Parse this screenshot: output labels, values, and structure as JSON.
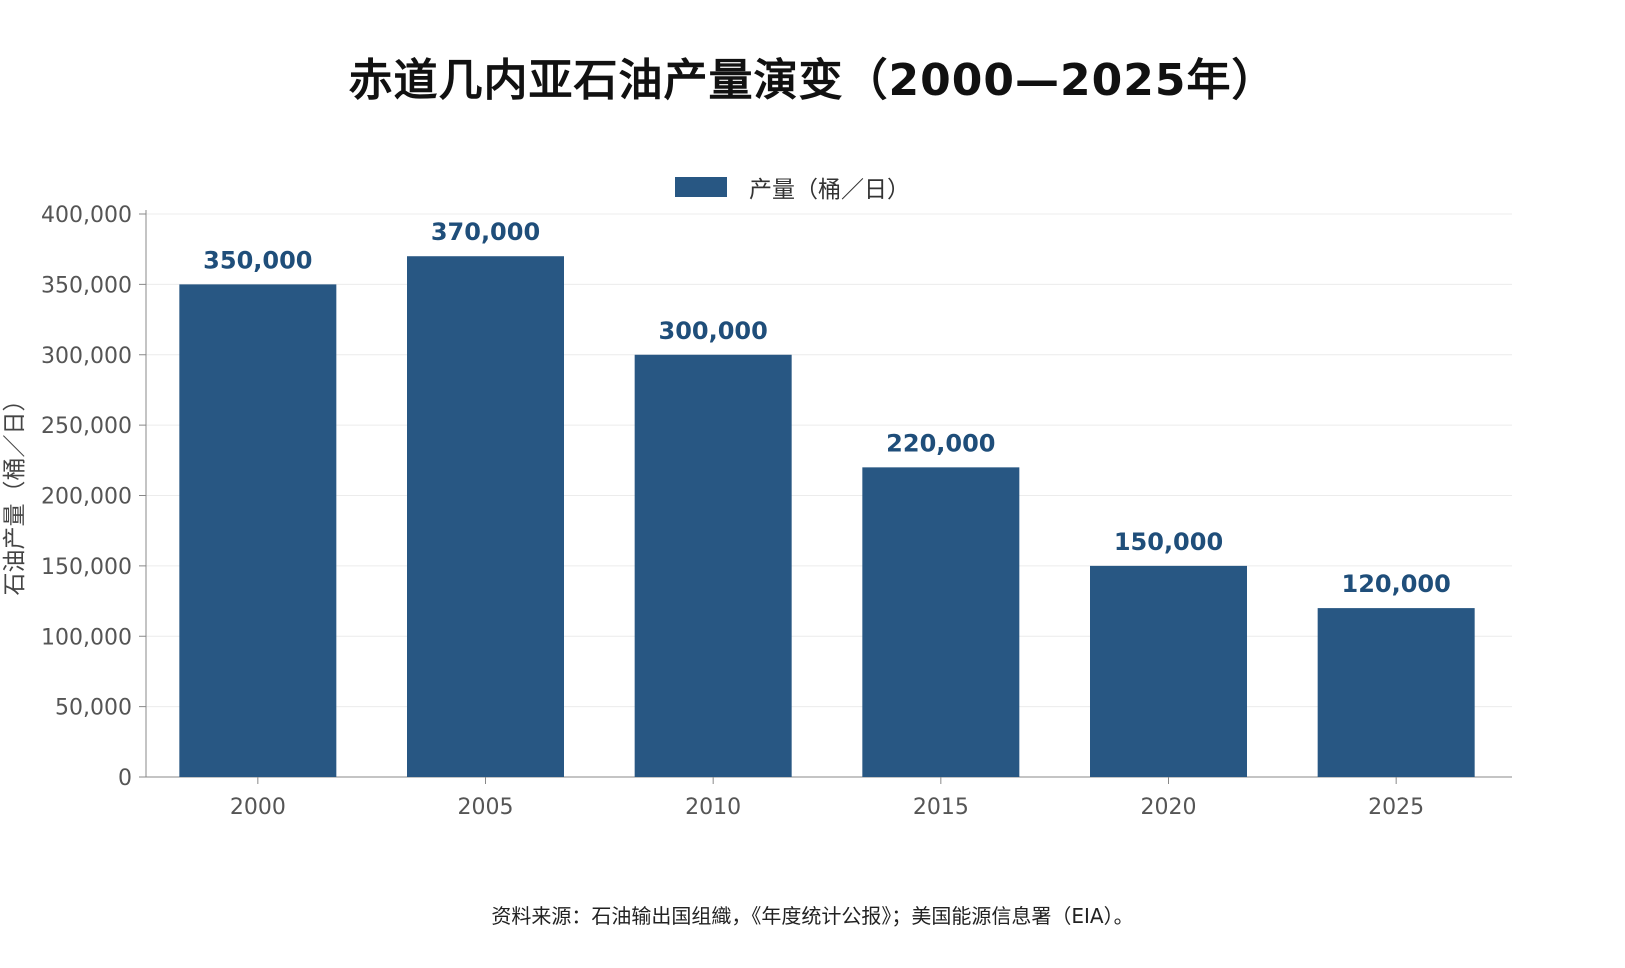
{
  "chart_data": {
    "type": "bar",
    "title": "赤道几内亚石油产量演变（2000—2025年）",
    "categories": [
      "2000",
      "2005",
      "2010",
      "2015",
      "2020",
      "2025"
    ],
    "series": [
      {
        "name": "产量（桶／日）",
        "values": [
          350000,
          370000,
          300000,
          220000,
          150000,
          120000
        ],
        "color": "#285783"
      }
    ],
    "value_labels": [
      "350,000",
      "370,000",
      "300,000",
      "220,000",
      "150,000",
      "120,000"
    ],
    "label_color": "#1f4e7a",
    "xlabel": "",
    "ylabel": "石油产量（桶／日）",
    "ylim": [
      0,
      400000
    ],
    "yticks": [
      0,
      50000,
      100000,
      150000,
      200000,
      250000,
      300000,
      350000,
      400000
    ],
    "ytick_labels": [
      "0",
      "50,000",
      "100,000",
      "150,000",
      "200,000",
      "250,000",
      "300,000",
      "350,000",
      "400,000"
    ],
    "grid": true,
    "legend_position": "top-center"
  },
  "source_note": "资料来源：石油输出国组織，《年度统计公报》；美国能源信息署（EIA）。"
}
